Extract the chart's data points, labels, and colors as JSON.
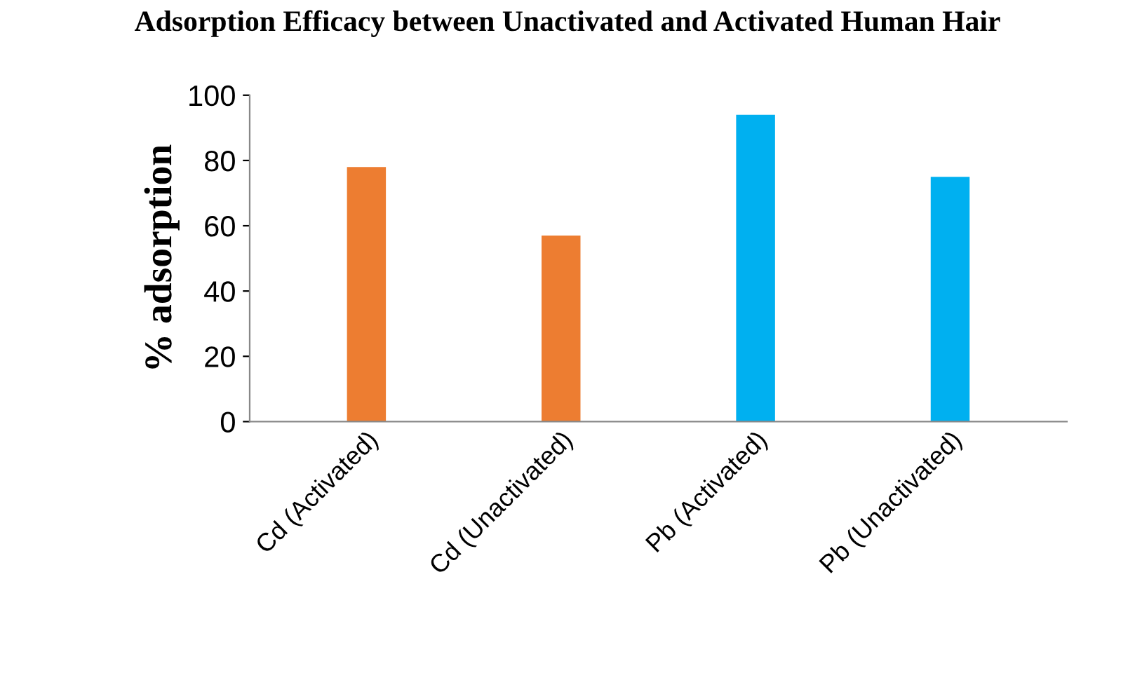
{
  "chart_data": {
    "type": "bar",
    "title": "Adsorption Efficacy between Unactivated and Activated Human Hair",
    "ylabel": "% adsorption",
    "categories": [
      "Cd (Activated)",
      "Cd (Unactivated)",
      "Pb (Activated)",
      "Pb (Unactivated)"
    ],
    "values": [
      78,
      57,
      94,
      75
    ],
    "colors": [
      "#ed7d31",
      "#ed7d31",
      "#00b0f0",
      "#00b0f0"
    ],
    "ylim": [
      0,
      100
    ],
    "yticks": [
      0,
      20,
      40,
      60,
      80,
      100
    ],
    "grid": false
  }
}
